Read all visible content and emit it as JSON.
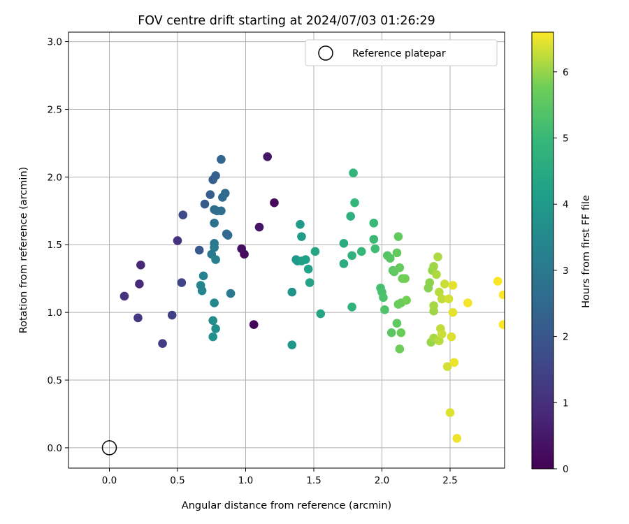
{
  "chart_data": {
    "type": "scatter",
    "title": "FOV centre drift starting at 2024/07/03 01:26:29",
    "xlabel": "Angular distance from reference (arcmin)",
    "ylabel": "Rotation from reference (arcmin)",
    "xlim": [
      -0.3,
      2.9
    ],
    "ylim": [
      -0.15,
      3.07
    ],
    "xticks": [
      0.0,
      0.5,
      1.0,
      1.5,
      2.0,
      2.5
    ],
    "xtick_labels": [
      "0.0",
      "0.5",
      "1.0",
      "1.5",
      "2.0",
      "2.5"
    ],
    "yticks": [
      0.0,
      0.5,
      1.0,
      1.5,
      2.0,
      2.5,
      3.0
    ],
    "ytick_labels": [
      "0.0",
      "0.5",
      "1.0",
      "1.5",
      "2.0",
      "2.5",
      "3.0"
    ],
    "grid": true,
    "legend": {
      "position": "top-right",
      "entries": [
        "Reference platepar"
      ]
    },
    "reference_point": {
      "x": 0.0,
      "y": 0.0,
      "label": "Reference platepar"
    },
    "colorbar": {
      "label": "Hours from first FF file",
      "range": [
        0,
        6.6
      ],
      "ticks": [
        0,
        1,
        2,
        3,
        4,
        5,
        6
      ],
      "tick_labels": [
        "0",
        "1",
        "2",
        "3",
        "4",
        "5",
        "6"
      ],
      "colormap": "viridis"
    },
    "series": [
      {
        "points": [
          [
            1.06,
            0.91,
            0.1
          ],
          [
            1.21,
            1.81,
            0.15
          ],
          [
            0.99,
            1.43,
            0.2
          ],
          [
            0.97,
            1.47,
            0.3
          ],
          [
            1.1,
            1.63,
            0.4
          ],
          [
            1.16,
            2.15,
            0.45
          ],
          [
            0.23,
            1.35,
            0.8
          ],
          [
            0.22,
            1.21,
            0.9
          ],
          [
            0.11,
            1.12,
            1.1
          ],
          [
            0.21,
            0.96,
            1.2
          ],
          [
            0.39,
            0.77,
            1.3
          ],
          [
            0.5,
            1.53,
            1.1
          ],
          [
            0.46,
            0.98,
            1.4
          ],
          [
            0.53,
            1.22,
            1.5
          ],
          [
            0.54,
            1.72,
            1.7
          ],
          [
            0.66,
            1.46,
            2.0
          ],
          [
            0.7,
            1.8,
            2.1
          ],
          [
            0.74,
            1.87,
            2.2
          ],
          [
            0.76,
            1.98,
            2.25
          ],
          [
            0.78,
            2.01,
            2.3
          ],
          [
            0.82,
            2.13,
            2.4
          ],
          [
            0.85,
            1.88,
            2.5
          ],
          [
            0.83,
            1.85,
            2.55
          ],
          [
            0.77,
            1.76,
            2.6
          ],
          [
            0.79,
            1.75,
            2.65
          ],
          [
            0.82,
            1.75,
            2.7
          ],
          [
            0.77,
            1.66,
            2.8
          ],
          [
            0.86,
            1.58,
            2.5
          ],
          [
            0.87,
            1.57,
            2.55
          ],
          [
            0.77,
            1.51,
            3.0
          ],
          [
            0.77,
            1.48,
            3.1
          ],
          [
            0.75,
            1.43,
            3.05
          ],
          [
            0.78,
            1.39,
            3.2
          ],
          [
            0.69,
            1.27,
            3.3
          ],
          [
            0.67,
            1.2,
            3.4
          ],
          [
            0.68,
            1.16,
            3.35
          ],
          [
            0.89,
            1.14,
            3.0
          ],
          [
            0.77,
            1.07,
            3.5
          ],
          [
            0.76,
            0.94,
            3.6
          ],
          [
            0.78,
            0.88,
            3.65
          ],
          [
            0.76,
            0.82,
            3.7
          ],
          [
            1.34,
            1.15,
            3.8
          ],
          [
            1.34,
            0.76,
            3.9
          ],
          [
            1.37,
            1.39,
            3.95
          ],
          [
            1.38,
            1.38,
            4.0
          ],
          [
            1.4,
            1.65,
            4.05
          ],
          [
            1.41,
            1.56,
            4.1
          ],
          [
            1.41,
            1.38,
            4.15
          ],
          [
            1.44,
            1.39,
            4.2
          ],
          [
            1.46,
            1.32,
            4.25
          ],
          [
            1.47,
            1.22,
            4.3
          ],
          [
            1.51,
            1.45,
            4.35
          ],
          [
            1.55,
            0.99,
            4.4
          ],
          [
            1.72,
            1.51,
            4.55
          ],
          [
            1.72,
            1.36,
            4.6
          ],
          [
            1.77,
            1.71,
            4.7
          ],
          [
            1.78,
            1.42,
            4.75
          ],
          [
            1.78,
            1.04,
            4.8
          ],
          [
            1.79,
            2.03,
            4.85
          ],
          [
            1.8,
            1.81,
            4.9
          ],
          [
            1.85,
            1.45,
            4.95
          ],
          [
            1.94,
            1.66,
            5.0
          ],
          [
            1.94,
            1.54,
            5.05
          ],
          [
            1.95,
            1.47,
            5.1
          ],
          [
            1.99,
            1.18,
            5.2
          ],
          [
            2.0,
            1.15,
            5.25
          ],
          [
            2.01,
            1.11,
            5.3
          ],
          [
            2.02,
            1.02,
            5.35
          ],
          [
            2.04,
            1.42,
            5.4
          ],
          [
            2.06,
            1.4,
            5.45
          ],
          [
            2.07,
            0.85,
            5.5
          ],
          [
            2.08,
            1.31,
            5.5
          ],
          [
            2.09,
            1.3,
            5.55
          ],
          [
            2.11,
            0.92,
            5.55
          ],
          [
            2.11,
            1.44,
            5.6
          ],
          [
            2.12,
            1.56,
            5.6
          ],
          [
            2.12,
            1.06,
            5.65
          ],
          [
            2.13,
            1.33,
            5.65
          ],
          [
            2.14,
            1.07,
            5.7
          ],
          [
            2.14,
            0.85,
            5.7
          ],
          [
            2.13,
            0.73,
            5.75
          ],
          [
            2.15,
            1.25,
            5.75
          ],
          [
            2.17,
            1.25,
            5.8
          ],
          [
            2.18,
            1.09,
            5.8
          ],
          [
            2.34,
            1.18,
            5.9
          ],
          [
            2.35,
            1.22,
            5.95
          ],
          [
            2.36,
            0.78,
            6.0
          ],
          [
            2.37,
            1.31,
            6.0
          ],
          [
            2.38,
            1.34,
            6.05
          ],
          [
            2.38,
            1.01,
            6.05
          ],
          [
            2.38,
            1.05,
            6.1
          ],
          [
            2.38,
            0.81,
            6.1
          ],
          [
            2.4,
            1.28,
            6.15
          ],
          [
            2.41,
            1.41,
            6.15
          ],
          [
            2.42,
            0.79,
            6.2
          ],
          [
            2.42,
            1.15,
            6.2
          ],
          [
            2.43,
            0.88,
            6.25
          ],
          [
            2.44,
            1.1,
            6.25
          ],
          [
            2.44,
            0.84,
            6.3
          ],
          [
            2.46,
            1.21,
            6.3
          ],
          [
            2.48,
            0.6,
            6.35
          ],
          [
            2.49,
            1.1,
            6.35
          ],
          [
            2.5,
            0.26,
            6.4
          ],
          [
            2.51,
            0.82,
            6.4
          ],
          [
            2.52,
            1.2,
            6.45
          ],
          [
            2.52,
            1.0,
            6.45
          ],
          [
            2.53,
            0.63,
            6.5
          ],
          [
            2.55,
            0.07,
            6.5
          ],
          [
            2.63,
            1.07,
            6.55
          ],
          [
            2.85,
            1.23,
            6.58
          ],
          [
            2.89,
            1.13,
            6.6
          ],
          [
            2.89,
            0.91,
            6.6
          ]
        ]
      }
    ]
  }
}
